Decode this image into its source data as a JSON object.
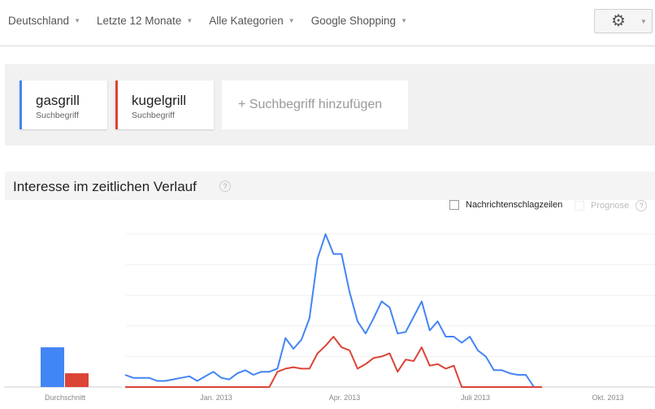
{
  "filters": [
    {
      "label": "Deutschland"
    },
    {
      "label": "Letzte 12 Monate"
    },
    {
      "label": "Alle Kategorien"
    },
    {
      "label": "Google Shopping"
    }
  ],
  "settings": {
    "icon": "gear-icon"
  },
  "terms": [
    {
      "name": "gasgrill",
      "sub": "Suchbegriff",
      "color": "#4285f4"
    },
    {
      "name": "kugelgrill",
      "sub": "Suchbegriff",
      "color": "#db4437"
    }
  ],
  "add_term": "+ Suchbegriff hinzufügen",
  "section": {
    "title": "Interesse im zeitlichen Verlauf",
    "help": "?"
  },
  "options": {
    "news": "Nachrichtenschlagzeilen",
    "forecast": "Prognose",
    "help": "?"
  },
  "chart_data": [
    {
      "type": "bar",
      "categories": [
        "Durchschnitt"
      ],
      "series": [
        {
          "values": [
            26
          ],
          "color": "#4285f4"
        },
        {
          "values": [
            9
          ],
          "color": "#db4437"
        }
      ],
      "ylim": [
        0,
        100
      ]
    },
    {
      "type": "line",
      "xtick_labels": [
        "Jan. 2013",
        "Apr. 2013",
        "Juli 2013",
        "Okt. 2013"
      ],
      "ylim": [
        0,
        100
      ],
      "grid": true,
      "series": [
        {
          "name": "gasgrill",
          "color": "#4285f4",
          "values": [
            8,
            6,
            6,
            6,
            4,
            4,
            5,
            6,
            7,
            4,
            7,
            10,
            6,
            5,
            9,
            11,
            8,
            10,
            10,
            12,
            32,
            25,
            31,
            45,
            84,
            100,
            87,
            87,
            62,
            43,
            35,
            45,
            56,
            52,
            35,
            36,
            46,
            56,
            37,
            43,
            33,
            33,
            29,
            33,
            24,
            20,
            11,
            11,
            9,
            8,
            8,
            0
          ]
        },
        {
          "name": "kugelgrill",
          "color": "#db4437",
          "values": [
            0,
            0,
            0,
            0,
            0,
            0,
            0,
            0,
            0,
            0,
            0,
            0,
            0,
            0,
            0,
            0,
            0,
            0,
            0,
            10,
            12,
            13,
            12,
            12,
            22,
            27,
            33,
            26,
            24,
            12,
            15,
            19,
            20,
            22,
            10,
            18,
            17,
            26,
            14,
            15,
            12,
            14,
            0,
            0,
            0,
            0,
            0,
            0,
            0,
            0,
            0,
            0
          ]
        }
      ]
    }
  ]
}
